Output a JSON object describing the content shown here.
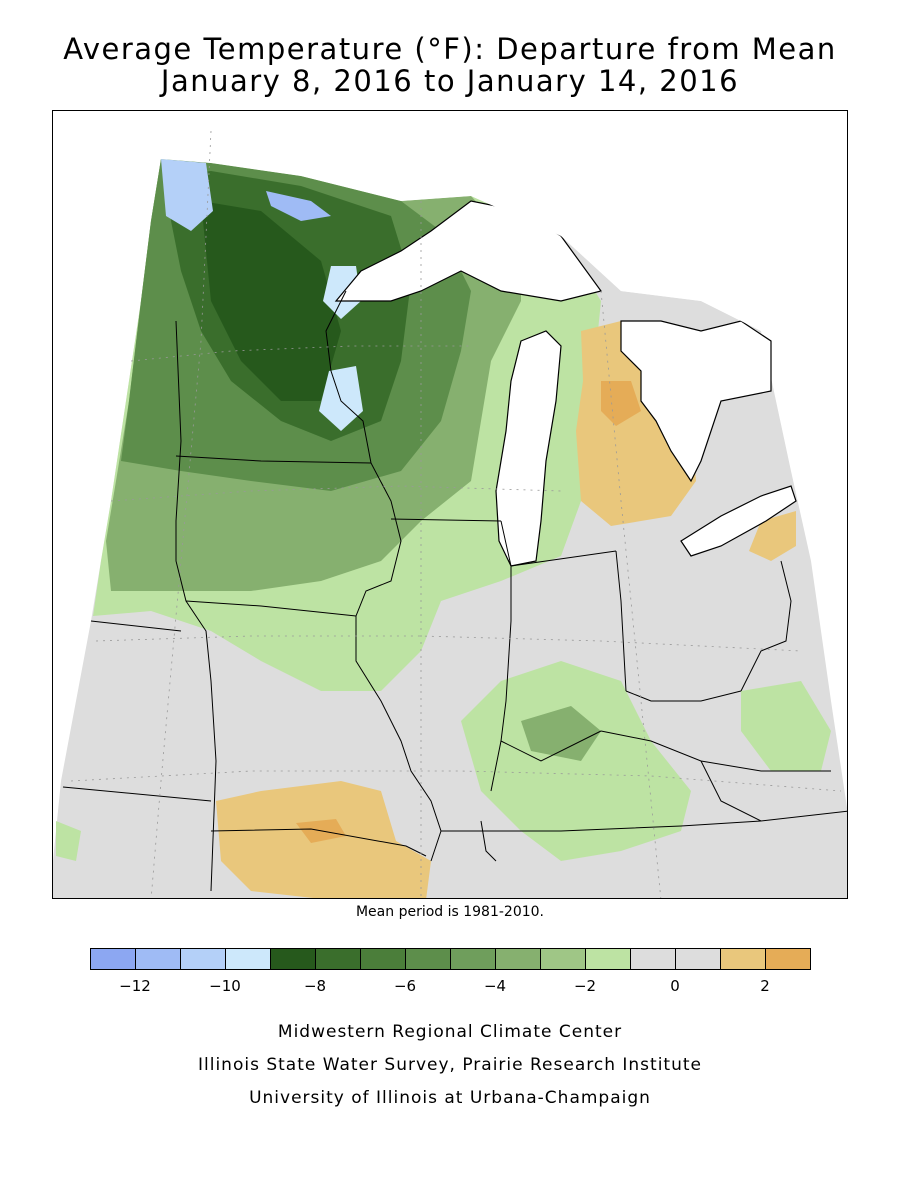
{
  "title_line1": "Average Temperature (°F): Departure from Mean",
  "title_line2": "January 8, 2016 to January 14, 2016",
  "mean_period_note": "Mean period is 1981-2010.",
  "legend": {
    "colors": [
      "#8ca7f2",
      "#9fbbf5",
      "#b4d0f8",
      "#cde8fb",
      "#26591c",
      "#3a6e2c",
      "#4b7e3a",
      "#5d8e4b",
      "#6f9e5c",
      "#86b06f",
      "#9fc686",
      "#bde3a3",
      "#dddddd",
      "#dddddd",
      "#e9c77c",
      "#e5ac57"
    ],
    "ticks": [
      {
        "label": "-12",
        "value": -12
      },
      {
        "label": "-10",
        "value": -10
      },
      {
        "label": "-8",
        "value": -8
      },
      {
        "label": "-6",
        "value": -6
      },
      {
        "label": "-4",
        "value": -4
      },
      {
        "label": "-2",
        "value": -2
      },
      {
        "label": "0",
        "value": 0
      },
      {
        "label": "2",
        "value": 2
      }
    ],
    "min": -13,
    "max": 3
  },
  "credits": [
    "Midwestern Regional Climate Center",
    "Illinois State Water Survey, Prairie Research Institute",
    "University of Illinois at Urbana-Champaign"
  ],
  "regions_colors": {
    "lake": "#ffffff",
    "no_data": "#ffffff",
    "near_normal": "#dddddd"
  }
}
